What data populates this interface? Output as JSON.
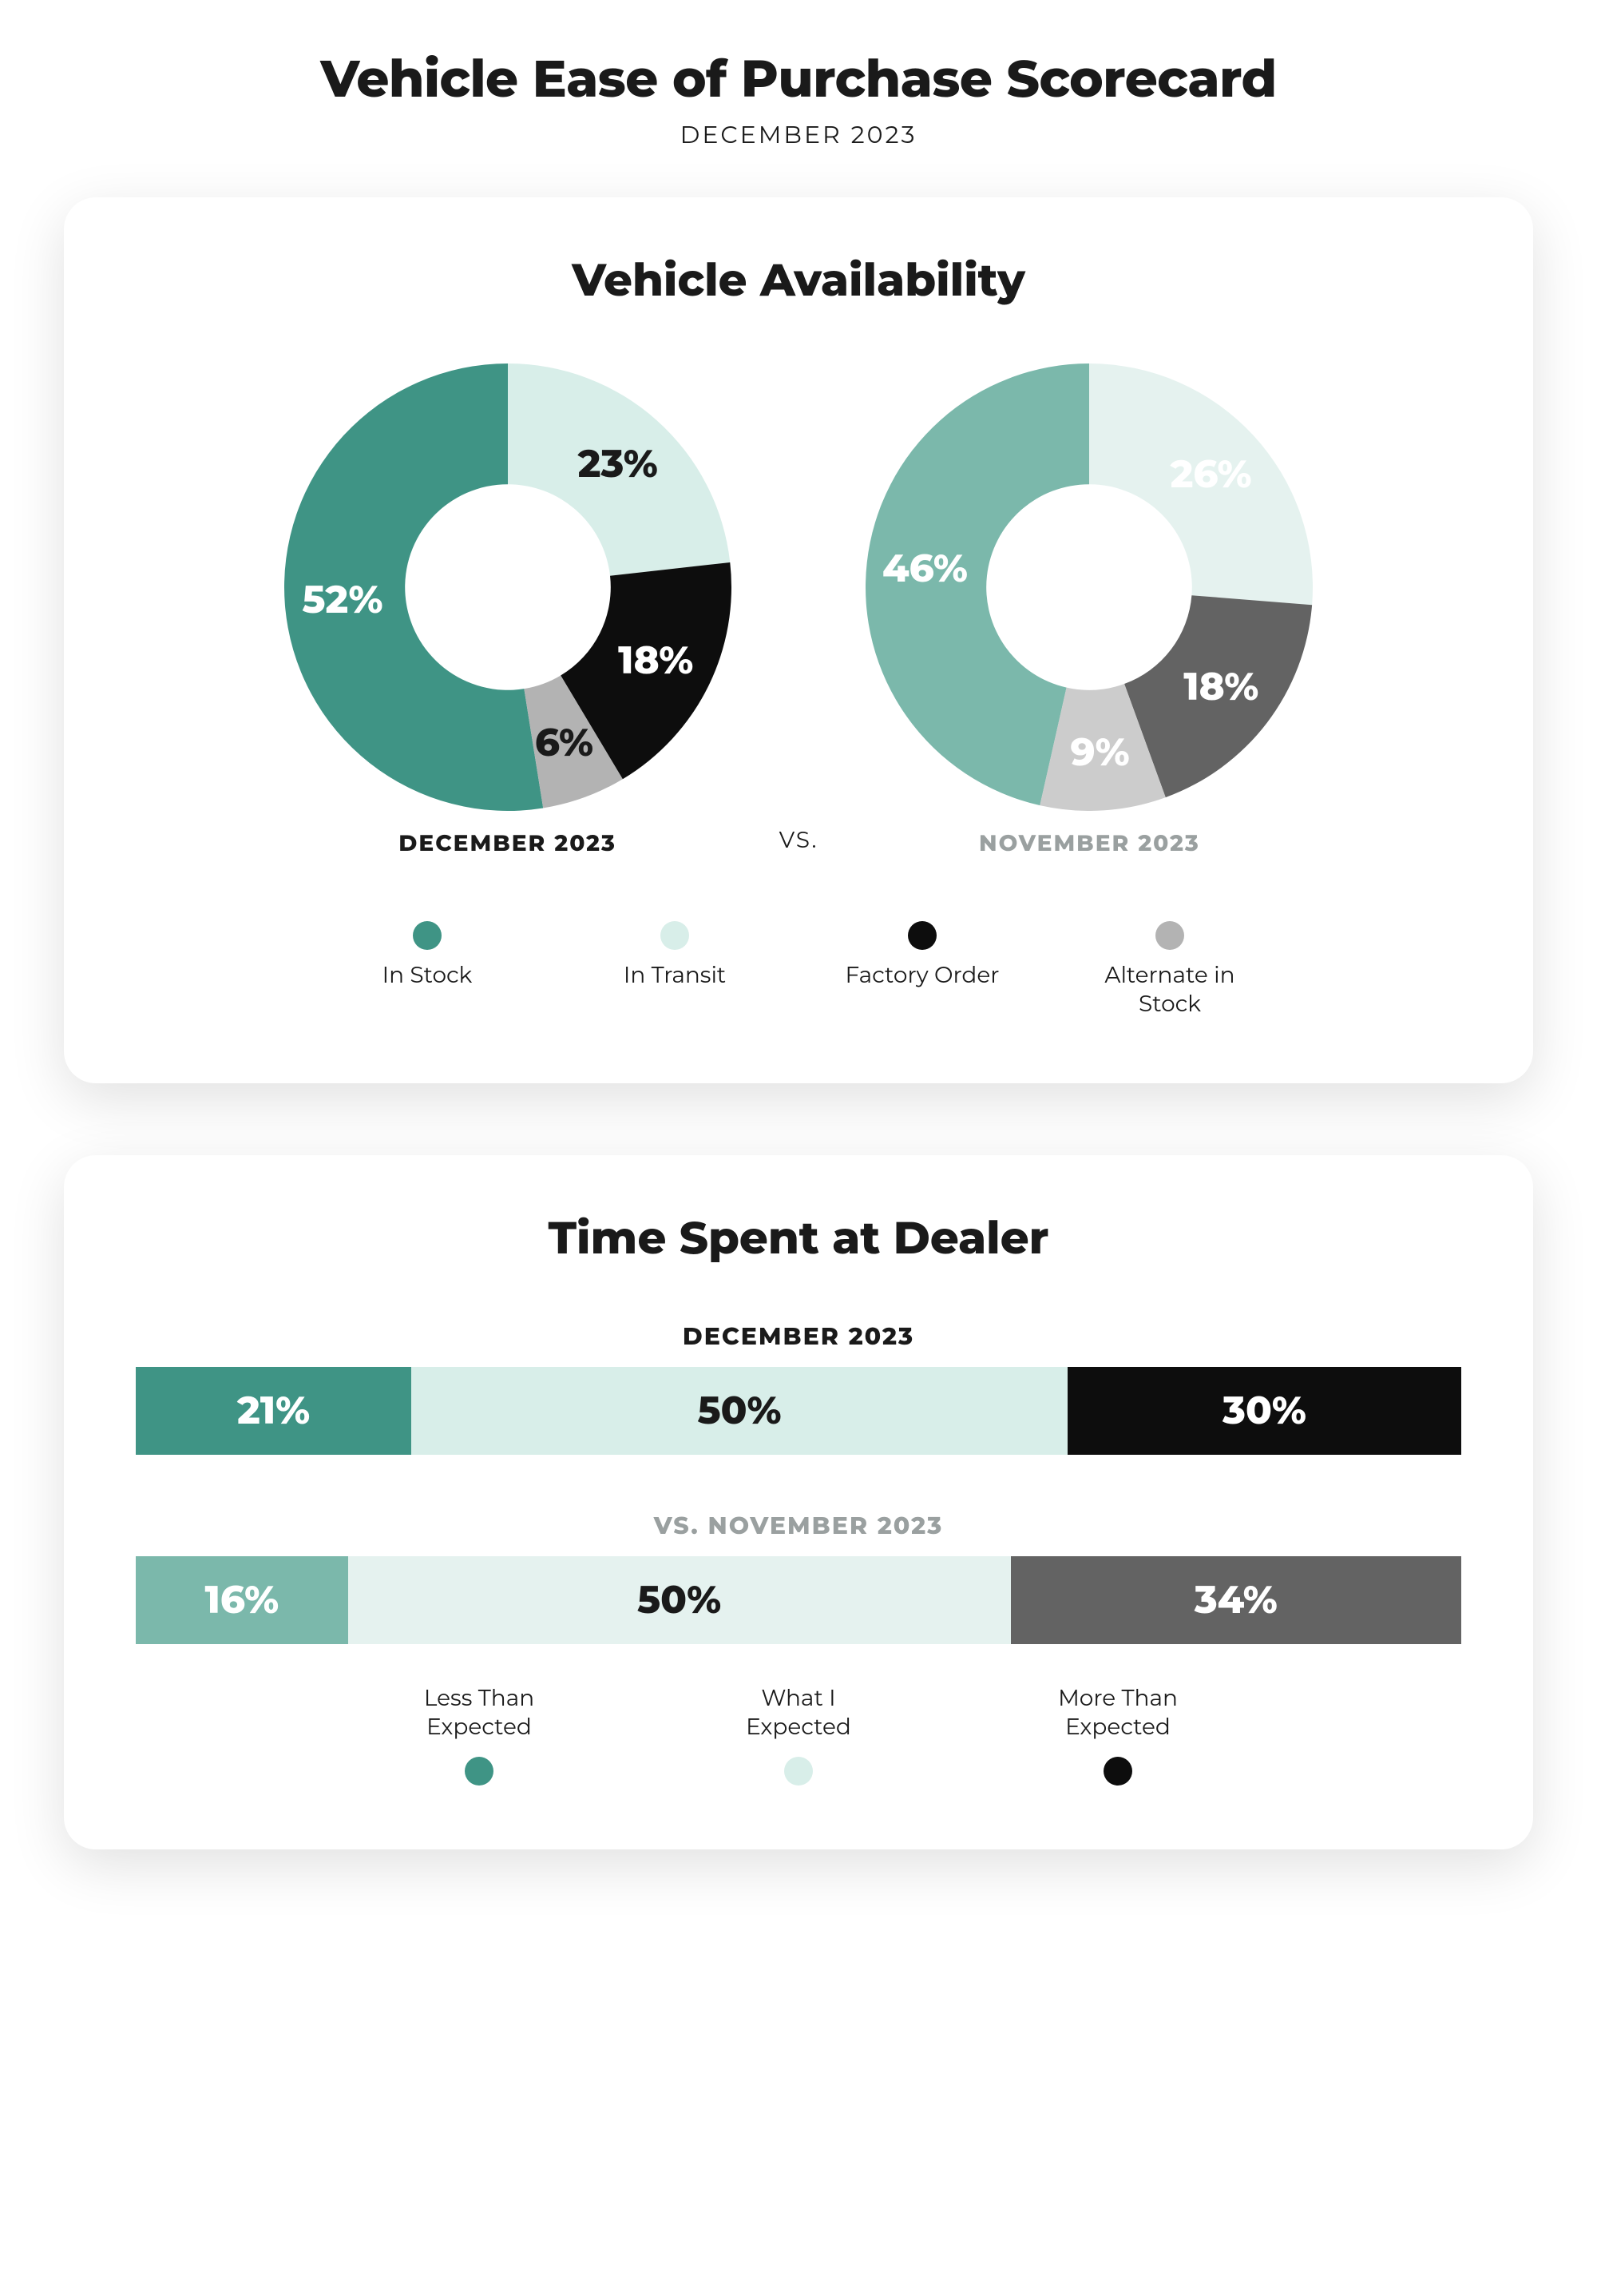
{
  "header": {
    "title": "Vehicle Ease of Purchase Scorecard",
    "subtitle": "DECEMBER 2023"
  },
  "availability": {
    "title": "Vehicle Availability",
    "vs_label": "VS.",
    "donut": {
      "inner_ratio": 0.46,
      "label_radius_ratio": 0.74,
      "dec_colors": [
        "#3f9485",
        "#d8eee9",
        "#0d0d0d",
        "#b3b3b3"
      ],
      "nov_colors": [
        "#7bb8ab",
        "#e5f2ef",
        "#636363",
        "#cccccc"
      ]
    },
    "dec": {
      "caption": "DECEMBER 2023",
      "caption_color": "#1a1a1a",
      "slices": [
        {
          "value": 52,
          "label": "52%",
          "label_color": "#ffffff"
        },
        {
          "value": 23,
          "label": "23%",
          "label_color": "#1a1a1a"
        },
        {
          "value": 18,
          "label": "18%",
          "label_color": "#ffffff"
        },
        {
          "value": 6,
          "label": "6%",
          "label_color": "#1a1a1a"
        }
      ]
    },
    "nov": {
      "caption": "NOVEMBER 2023",
      "caption_color": "#9aa0a0",
      "slices": [
        {
          "value": 46,
          "label": "46%",
          "label_color": "#ffffff"
        },
        {
          "value": 26,
          "label": "26%",
          "label_color": "#ffffff"
        },
        {
          "value": 18,
          "label": "18%",
          "label_color": "#ffffff"
        },
        {
          "value": 9,
          "label": "9%",
          "label_color": "#ffffff"
        }
      ]
    },
    "legend": [
      {
        "label": "In Stock",
        "color": "#3f9485"
      },
      {
        "label": "In Transit",
        "color": "#d8eee9"
      },
      {
        "label": "Factory Order",
        "color": "#0d0d0d"
      },
      {
        "label": "Alternate in Stock",
        "color": "#b3b3b3"
      }
    ]
  },
  "timeSpent": {
    "title": "Time Spent at Dealer",
    "dec_caption": "DECEMBER 2023",
    "nov_caption": "VS. NOVEMBER 2023",
    "dec_colors": [
      "#3f9485",
      "#d8eee9",
      "#0d0d0d"
    ],
    "nov_colors": [
      "#7bb8ab",
      "#e5f2ef",
      "#636363"
    ],
    "dec": [
      {
        "value": 21,
        "label": "21%",
        "text_color": "#ffffff"
      },
      {
        "value": 50,
        "label": "50%",
        "text_color": "#1a1a1a"
      },
      {
        "value": 30,
        "label": "30%",
        "text_color": "#ffffff"
      }
    ],
    "nov": [
      {
        "value": 16,
        "label": "16%",
        "text_color": "#ffffff"
      },
      {
        "value": 50,
        "label": "50%",
        "text_color": "#1a1a1a"
      },
      {
        "value": 34,
        "label": "34%",
        "text_color": "#ffffff"
      }
    ],
    "legend": [
      {
        "label": "Less Than Expected",
        "color": "#3f9485"
      },
      {
        "label": "What I Expected",
        "color": "#d8eee9"
      },
      {
        "label": "More Than Expected",
        "color": "#0d0d0d"
      }
    ]
  }
}
